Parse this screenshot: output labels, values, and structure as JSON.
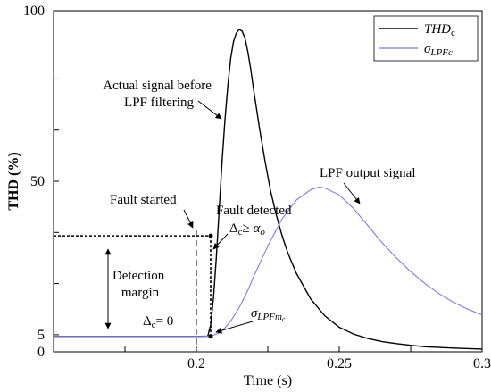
{
  "chart_data": {
    "type": "line",
    "xlabel": "Time (s)",
    "ylabel": "THD (%)",
    "xlim": [
      0.15,
      0.3
    ],
    "ylim": [
      0,
      100
    ],
    "x_ticks": [
      {
        "value": 0.2,
        "label": "0.2"
      },
      {
        "value": 0.25,
        "label": "0.25"
      },
      {
        "value": 0.3,
        "label": "0.3"
      }
    ],
    "y_ticks": [
      {
        "value": 0,
        "label": "0"
      },
      {
        "value": 5,
        "label": "5"
      },
      {
        "value": 50,
        "label": "50"
      },
      {
        "value": 100,
        "label": "100"
      }
    ],
    "grid": false,
    "legend_position": "top-right",
    "series": [
      {
        "name": "THDc",
        "legend_main": "THD",
        "legend_sub": "c",
        "color": "#000000",
        "x": [
          0.15,
          0.18,
          0.2,
          0.204,
          0.205,
          0.206,
          0.207,
          0.208,
          0.209,
          0.21,
          0.211,
          0.212,
          0.213,
          0.214,
          0.215,
          0.216,
          0.217,
          0.218,
          0.219,
          0.22,
          0.222,
          0.224,
          0.226,
          0.228,
          0.23,
          0.232,
          0.235,
          0.24,
          0.245,
          0.25,
          0.255,
          0.26,
          0.265,
          0.27,
          0.275,
          0.28,
          0.29,
          0.3
        ],
        "y": [
          4.5,
          4.5,
          4.5,
          4.6,
          8,
          16,
          28,
          42,
          56,
          68,
          78,
          86,
          91,
          93.5,
          94.5,
          94,
          92,
          88,
          83,
          77,
          66,
          56,
          47,
          40,
          34,
          29,
          23,
          15.5,
          10.5,
          7.2,
          5.2,
          3.9,
          3.0,
          2.4,
          1.9,
          1.5,
          1.1,
          0.8
        ]
      },
      {
        "name": "σLPFc",
        "legend_main": "σ",
        "legend_sub": "LPFc",
        "color": "#7b7bf0",
        "x": [
          0.15,
          0.2,
          0.205,
          0.208,
          0.21,
          0.212,
          0.215,
          0.218,
          0.22,
          0.225,
          0.23,
          0.235,
          0.24,
          0.243,
          0.245,
          0.25,
          0.255,
          0.26,
          0.265,
          0.27,
          0.275,
          0.28,
          0.285,
          0.29,
          0.295,
          0.3
        ],
        "y": [
          4.5,
          4.5,
          4.6,
          5.5,
          7,
          9,
          13,
          18,
          22,
          31,
          39,
          44.5,
          47.5,
          48.3,
          48,
          46,
          42,
          37,
          32,
          27.5,
          23.5,
          20,
          17,
          14.5,
          12.5,
          10.8
        ]
      }
    ],
    "reference_lines": {
      "fault_start_x": 0.2,
      "fault_detect_x": 0.205,
      "detection_level_y": 34,
      "baseline_y": 4.5
    },
    "annotations": [
      {
        "id": "actual-signal",
        "lines": [
          "Actual signal before",
          "LPF filtering"
        ]
      },
      {
        "id": "lpf-output",
        "lines": [
          "LPF output signal"
        ]
      },
      {
        "id": "fault-started",
        "lines": [
          "Fault started"
        ]
      },
      {
        "id": "fault-detected",
        "lines": [
          "Fault detected"
        ]
      },
      {
        "id": "delta-ge-alpha",
        "main": "Δ",
        "sub": "c",
        "op": "≥ ",
        "greek": "α",
        "greek_sub": "o"
      },
      {
        "id": "detection-margin",
        "lines": [
          "Detection",
          "margin"
        ]
      },
      {
        "id": "delta-eq-zero",
        "main": "Δ",
        "sub": "c",
        "tail": "= 0"
      },
      {
        "id": "sigma-lpfm",
        "main": "σ",
        "sub": "LPFm",
        "subsub": "c"
      }
    ]
  }
}
